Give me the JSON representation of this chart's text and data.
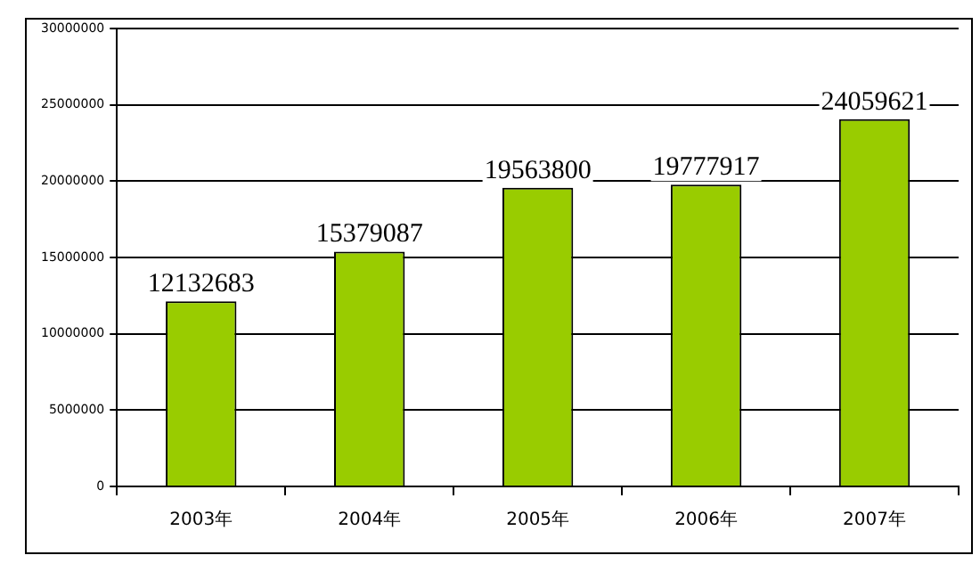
{
  "chart_data": {
    "type": "bar",
    "categories": [
      "2003年",
      "2004年",
      "2005年",
      "2006年",
      "2007年"
    ],
    "values": [
      12132683,
      15379087,
      19563800,
      19777917,
      24059621
    ],
    "color": "#99cc00",
    "ylim": [
      0,
      30000000
    ],
    "yticks": [
      0,
      5000000,
      10000000,
      15000000,
      20000000,
      25000000,
      30000000
    ],
    "grid": "y",
    "legend": false,
    "data_labels": true
  }
}
